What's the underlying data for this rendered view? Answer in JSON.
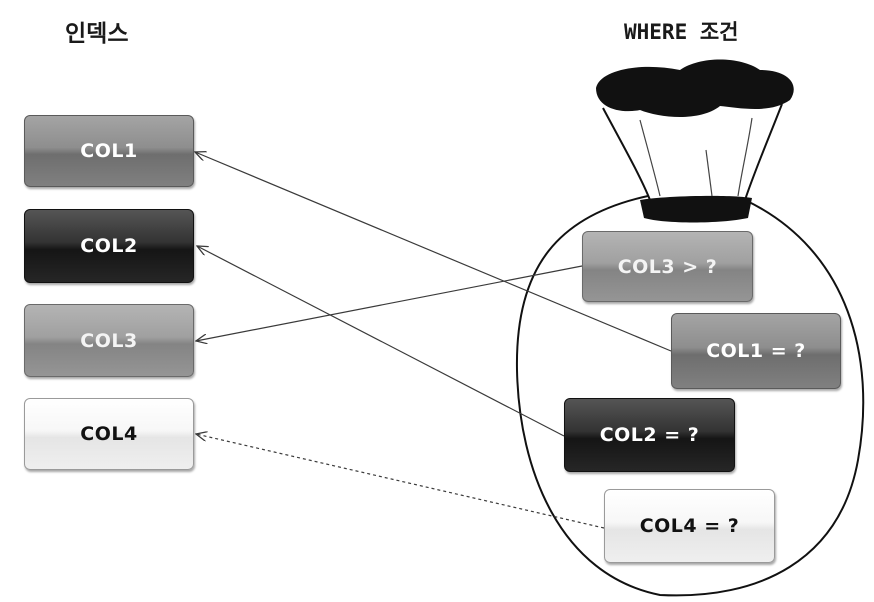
{
  "headings": {
    "index": "인덱스",
    "where": "WHERE 조건"
  },
  "index_columns": [
    "COL1",
    "COL2",
    "COL3",
    "COL4"
  ],
  "where_conditions": {
    "col3": "COL3 > ?",
    "col1": "COL1 = ?",
    "col2": "COL2 = ?",
    "col4": "COL4 = ?"
  },
  "colors": {
    "arrow": "#3a3a3a",
    "bag_outline": "#111111",
    "bag_top": "#111111"
  },
  "icons": [
    "bag-icon"
  ]
}
